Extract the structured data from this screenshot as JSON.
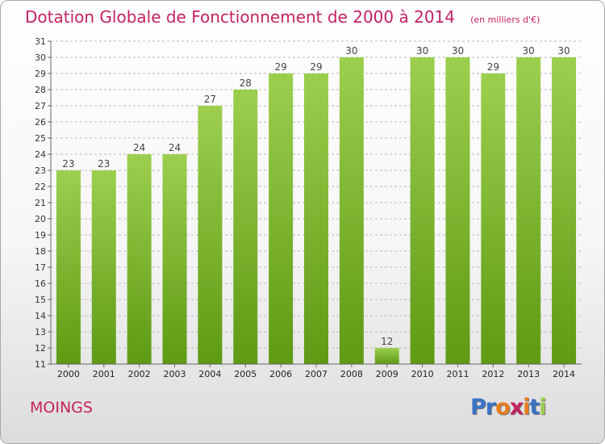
{
  "header": {
    "title": "Dotation Globale de Fonctionnement de 2000 à 2014",
    "subtitle": "(en milliers d'€)"
  },
  "footer": {
    "commune": "MOINGS",
    "logo_text": "Proxiti",
    "logo_letters": [
      "P",
      "r",
      "o",
      "x",
      "i",
      "t",
      "i"
    ]
  },
  "colors": {
    "title": "#c4225e",
    "bar_top": "#9ccf4e",
    "bar_bottom": "#5e9a14",
    "logo": [
      "#3b73c4",
      "#3b73c4",
      "#e87d1e",
      "#c4225e",
      "#e87d1e",
      "#3b73c4",
      "#9ccf4e"
    ]
  },
  "chart_data": {
    "type": "bar",
    "title": "Dotation Globale de Fonctionnement de 2000 à 2014",
    "subtitle": "(en milliers d'€)",
    "categories": [
      "2000",
      "2001",
      "2002",
      "2003",
      "2004",
      "2005",
      "2006",
      "2007",
      "2008",
      "2009",
      "2010",
      "2011",
      "2012",
      "2013",
      "2014"
    ],
    "values": [
      23,
      23,
      24,
      24,
      27,
      28,
      29,
      29,
      30,
      12,
      30,
      30,
      29,
      30,
      30
    ],
    "data_labels": [
      "23",
      "23",
      "24",
      "24",
      "27",
      "28",
      "29",
      "29",
      "30",
      "12",
      "30",
      "30",
      "29",
      "30",
      "30"
    ],
    "ylim": [
      11,
      31
    ],
    "yticks": [
      "11",
      "12",
      "13",
      "14",
      "15",
      "16",
      "17",
      "18",
      "19",
      "20",
      "21",
      "22",
      "23",
      "24",
      "25",
      "26",
      "27",
      "28",
      "29",
      "30",
      "31"
    ],
    "xlabel": "",
    "ylabel": "",
    "grid": "horizontal dashed",
    "legend": "none"
  }
}
